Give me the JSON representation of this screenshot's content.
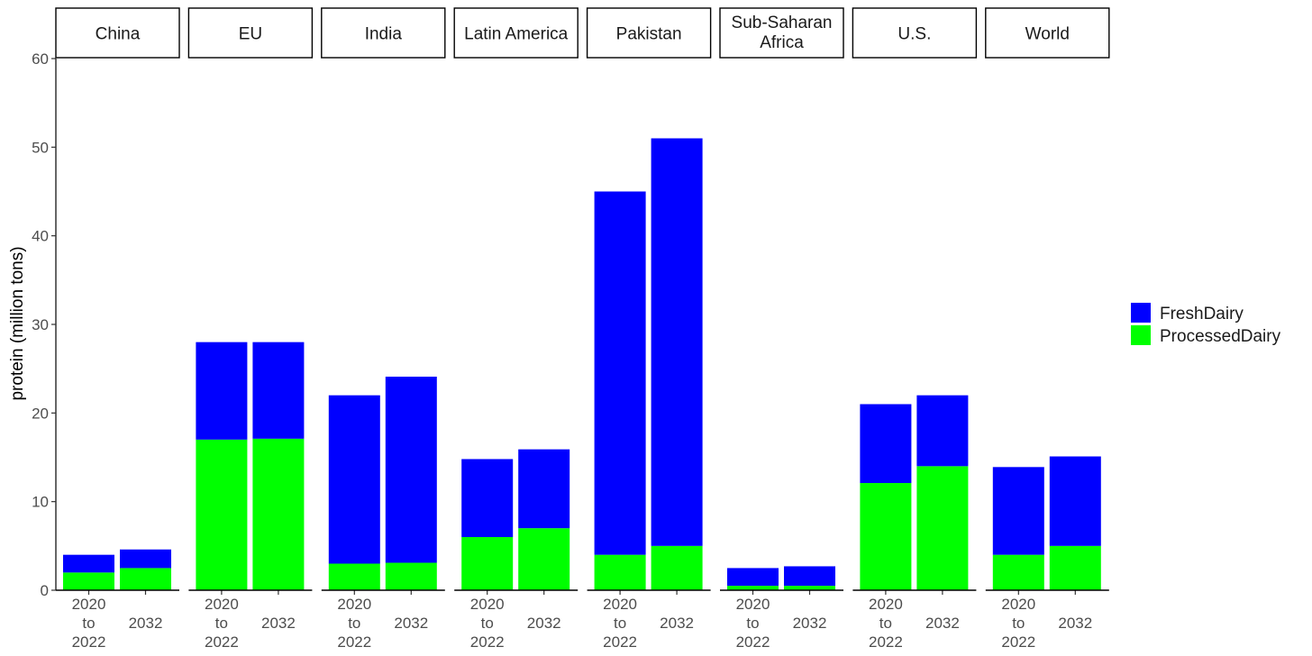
{
  "chart_data": {
    "type": "bar",
    "stacked": true,
    "facets": [
      "China",
      "EU",
      "India",
      "Latin America",
      "Pakistan",
      "Sub-Saharan\nAfrica",
      "U.S.",
      "World"
    ],
    "categories": [
      "2020\nto\n2022",
      "2032"
    ],
    "ylabel": "protein (million tons)",
    "xlabel": "",
    "ylim": [
      0,
      60
    ],
    "yticks": [
      0,
      10,
      20,
      30,
      40,
      50,
      60
    ],
    "grid": false,
    "legend_position": "right",
    "series": [
      {
        "name": "ProcessedDairy",
        "color": "#00ff00",
        "values": [
          [
            2,
            2.5
          ],
          [
            17,
            17.1
          ],
          [
            3,
            3.1
          ],
          [
            6,
            7
          ],
          [
            4,
            5
          ],
          [
            0.5,
            0.5
          ],
          [
            12.1,
            14
          ],
          [
            4,
            5
          ]
        ]
      },
      {
        "name": "FreshDairy",
        "color": "#0000ff",
        "values": [
          [
            2,
            2.1
          ],
          [
            11,
            10.9
          ],
          [
            19,
            21
          ],
          [
            8.8,
            8.9
          ],
          [
            41,
            46
          ],
          [
            2,
            2.2
          ],
          [
            8.9,
            8
          ],
          [
            9.9,
            10.1
          ]
        ]
      }
    ]
  }
}
